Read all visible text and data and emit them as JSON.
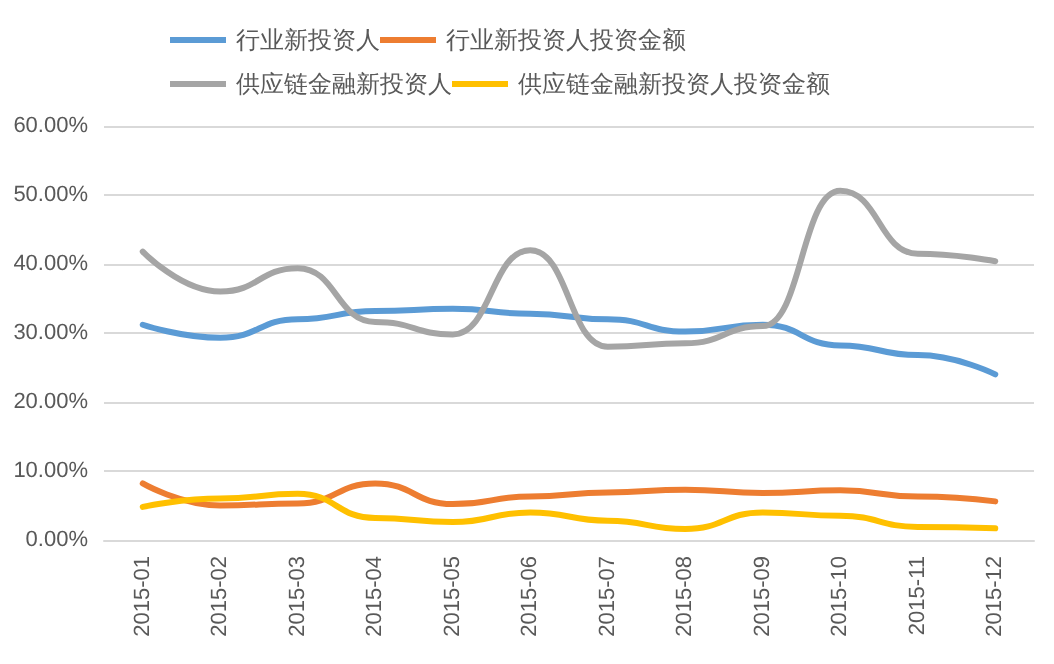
{
  "chart_data": {
    "type": "line",
    "categories": [
      "2015-01",
      "2015-02",
      "2015-03",
      "2015-04",
      "2015-05",
      "2015-06",
      "2015-07",
      "2015-08",
      "2015-09",
      "2015-10",
      "2015-11",
      "2015-12"
    ],
    "series": [
      {
        "name": "行业新投资人",
        "color": "#5b9bd5",
        "values": [
          31.2,
          29.3,
          32,
          33.2,
          33.5,
          32.8,
          32,
          30.2,
          31.2,
          28.2,
          26.8,
          24.0
        ]
      },
      {
        "name": "行业新投资人投资金额",
        "color": "#ed7d31",
        "values": [
          8.2,
          5,
          5.3,
          8.2,
          5.2,
          6.3,
          6.9,
          7.3,
          6.8,
          7.2,
          6.3,
          5.6
        ]
      },
      {
        "name": "供应链金融新投资人",
        "color": "#a5a5a5",
        "values": [
          41.8,
          36,
          39.4,
          31.6,
          29.8,
          42,
          28,
          28.5,
          31,
          50.6,
          41.5,
          40.4
        ]
      },
      {
        "name": "供应链金融新投资人投资金额",
        "color": "#ffc000",
        "values": [
          4.8,
          6,
          6.7,
          3.2,
          2.6,
          4,
          2.8,
          1.6,
          4,
          3.5,
          1.9,
          1.7
        ]
      }
    ],
    "ylim": [
      0,
      60
    ],
    "yticks": [
      {
        "value": 0,
        "label": "0.00%"
      },
      {
        "value": 10,
        "label": "10.00%"
      },
      {
        "value": 20,
        "label": "20.00%"
      },
      {
        "value": 30,
        "label": "30.00%"
      },
      {
        "value": 40,
        "label": "40.00%"
      },
      {
        "value": 50,
        "label": "50.00%"
      },
      {
        "value": 60,
        "label": "60.00%"
      }
    ],
    "grid": "y",
    "legend": "top",
    "marker": "none",
    "line_style": "solid"
  }
}
